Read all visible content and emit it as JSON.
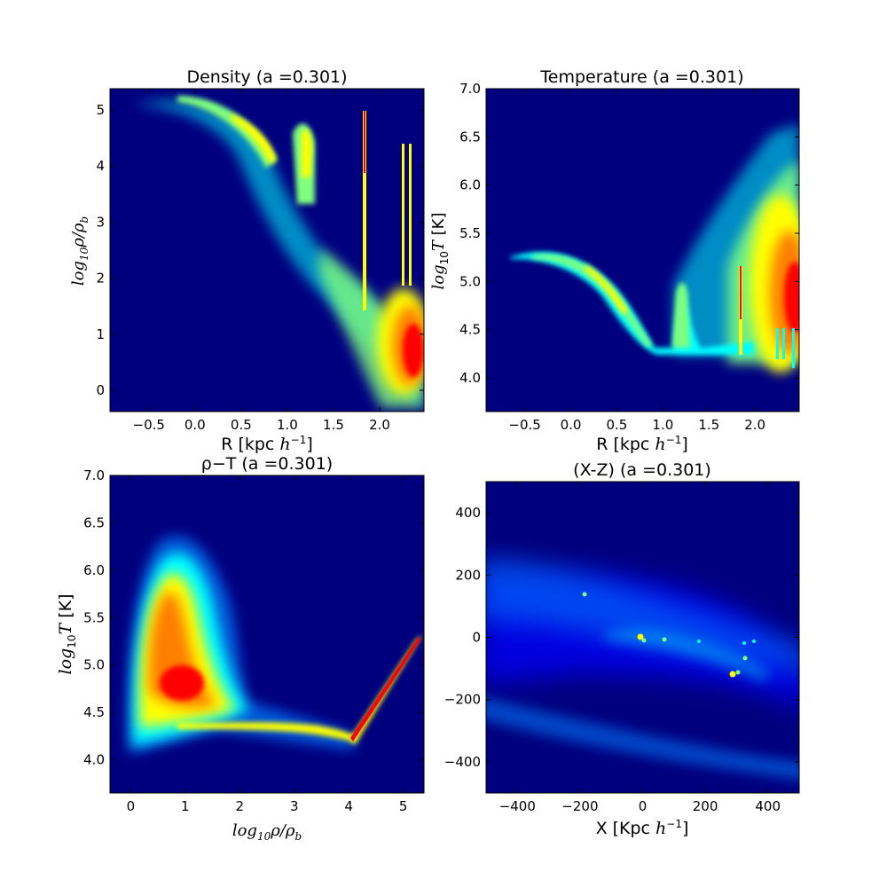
{
  "chart_data": [
    {
      "type": "heatmap",
      "title": "Density (a =0.301)",
      "xlabel_prefix": "R [kpc ",
      "xlabel_math": "h",
      "xlabel_sup": "−1",
      "xlabel_suffix": "]",
      "ylabel": "log10ρ/ρb",
      "xlim": [
        -0.92,
        2.48
      ],
      "ylim": [
        -0.38,
        5.38
      ],
      "xticks": [
        -0.5,
        0.0,
        0.5,
        1.0,
        1.5,
        2.0
      ],
      "xtick_labels": [
        "−0.5",
        "0.0",
        "0.5",
        "1.0",
        "1.5",
        "2.0"
      ],
      "yticks": [
        0,
        1,
        2,
        3,
        4,
        5
      ],
      "ytick_labels": [
        "0",
        "1",
        "2",
        "3",
        "4",
        "5"
      ]
    },
    {
      "type": "heatmap",
      "title": "Temperature (a =0.301)",
      "xlabel_prefix": "R [kpc ",
      "xlabel_math": "h",
      "xlabel_sup": "−1",
      "xlabel_suffix": "]",
      "ylabel": "log10T  [K]",
      "xlim": [
        -0.92,
        2.48
      ],
      "ylim": [
        3.65,
        7.0
      ],
      "xticks": [
        -0.5,
        0.0,
        0.5,
        1.0,
        1.5,
        2.0
      ],
      "xtick_labels": [
        "−0.5",
        "0.0",
        "0.5",
        "1.0",
        "1.5",
        "2.0"
      ],
      "yticks": [
        4.0,
        4.5,
        5.0,
        5.5,
        6.0,
        6.5,
        7.0
      ],
      "ytick_labels": [
        "4.0",
        "4.5",
        "5.0",
        "5.5",
        "6.0",
        "6.5",
        "7.0"
      ]
    },
    {
      "type": "heatmap",
      "title": "ρ−T (a =0.301)",
      "xlabel": "log10ρ/ρb",
      "ylabel": "log10T  [K]",
      "xlim": [
        -0.38,
        5.38
      ],
      "ylim": [
        3.65,
        7.0
      ],
      "xticks": [
        0,
        1,
        2,
        3,
        4,
        5
      ],
      "xtick_labels": [
        "0",
        "1",
        "2",
        "3",
        "4",
        "5"
      ],
      "yticks": [
        4.0,
        4.5,
        5.0,
        5.5,
        6.0,
        6.5,
        7.0
      ],
      "ytick_labels": [
        "4.0",
        "4.5",
        "5.0",
        "5.5",
        "6.0",
        "6.5",
        "7.0"
      ]
    },
    {
      "type": "heatmap",
      "title": "(X-Z) (a =0.301)",
      "xlabel_prefix": "X [Kpc ",
      "xlabel_math": "h",
      "xlabel_sup": "−1",
      "xlabel_suffix": "]",
      "xlim": [
        -500,
        500
      ],
      "ylim": [
        -500,
        500
      ],
      "xticks": [
        -400,
        -200,
        0,
        200,
        400
      ],
      "xtick_labels": [
        "−400",
        "−200",
        "0",
        "200",
        "400"
      ],
      "yticks": [
        -400,
        -200,
        0,
        200,
        400
      ],
      "ytick_labels": [
        "−400",
        "−200",
        "0",
        "200",
        "400"
      ]
    }
  ],
  "colors": {
    "background": "#00007f",
    "jet": [
      "#00007f",
      "#0000ff",
      "#007fff",
      "#00ffff",
      "#7fff7f",
      "#ffff00",
      "#ff7f00",
      "#ff0000",
      "#7f0000"
    ]
  }
}
